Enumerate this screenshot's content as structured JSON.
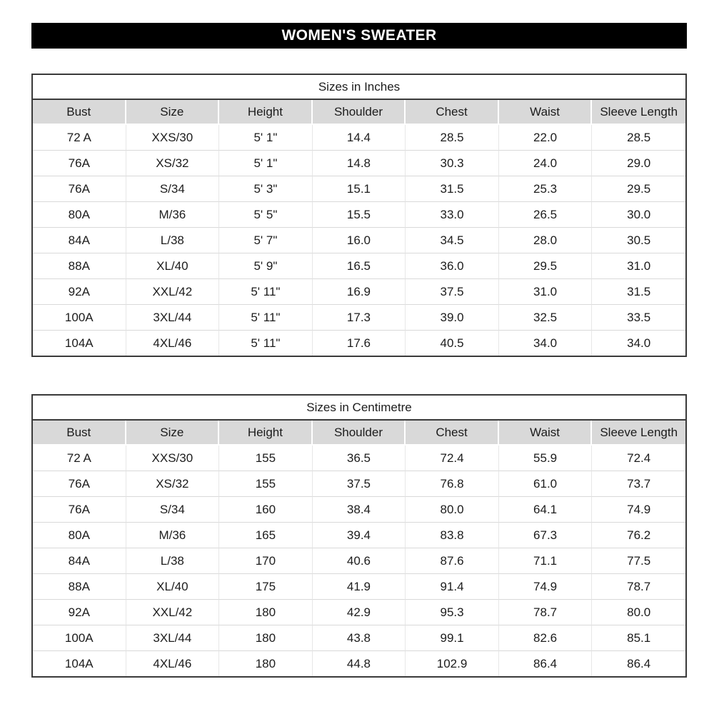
{
  "page_title": "WOMEN'S SWEATER",
  "colors": {
    "banner_bg": "#000000",
    "banner_text": "#ffffff",
    "header_row_bg": "#d9d9d9",
    "grid_line": "#d9d9d9",
    "table_border": "#3a3a3a"
  },
  "tables": [
    {
      "title": "Sizes in Inches",
      "columns": [
        "Bust",
        "Size",
        "Height",
        "Shoulder",
        "Chest",
        "Waist",
        "Sleeve Length"
      ],
      "rows": [
        [
          "72 A",
          "XXS/30",
          "5' 1\"",
          "14.4",
          "28.5",
          "22.0",
          "28.5"
        ],
        [
          "76A",
          "XS/32",
          "5' 1\"",
          "14.8",
          "30.3",
          "24.0",
          "29.0"
        ],
        [
          "76A",
          "S/34",
          "5' 3\"",
          "15.1",
          "31.5",
          "25.3",
          "29.5"
        ],
        [
          "80A",
          "M/36",
          "5' 5\"",
          "15.5",
          "33.0",
          "26.5",
          "30.0"
        ],
        [
          "84A",
          "L/38",
          "5' 7\"",
          "16.0",
          "34.5",
          "28.0",
          "30.5"
        ],
        [
          "88A",
          "XL/40",
          "5' 9\"",
          "16.5",
          "36.0",
          "29.5",
          "31.0"
        ],
        [
          "92A",
          "XXL/42",
          "5' 11\"",
          "16.9",
          "37.5",
          "31.0",
          "31.5"
        ],
        [
          "100A",
          "3XL/44",
          "5' 11\"",
          "17.3",
          "39.0",
          "32.5",
          "33.5"
        ],
        [
          "104A",
          "4XL/46",
          "5' 11\"",
          "17.6",
          "40.5",
          "34.0",
          "34.0"
        ]
      ]
    },
    {
      "title": "Sizes in Centimetre",
      "columns": [
        "Bust",
        "Size",
        "Height",
        "Shoulder",
        "Chest",
        "Waist",
        "Sleeve Length"
      ],
      "rows": [
        [
          "72 A",
          "XXS/30",
          "155",
          "36.5",
          "72.4",
          "55.9",
          "72.4"
        ],
        [
          "76A",
          "XS/32",
          "155",
          "37.5",
          "76.8",
          "61.0",
          "73.7"
        ],
        [
          "76A",
          "S/34",
          "160",
          "38.4",
          "80.0",
          "64.1",
          "74.9"
        ],
        [
          "80A",
          "M/36",
          "165",
          "39.4",
          "83.8",
          "67.3",
          "76.2"
        ],
        [
          "84A",
          "L/38",
          "170",
          "40.6",
          "87.6",
          "71.1",
          "77.5"
        ],
        [
          "88A",
          "XL/40",
          "175",
          "41.9",
          "91.4",
          "74.9",
          "78.7"
        ],
        [
          "92A",
          "XXL/42",
          "180",
          "42.9",
          "95.3",
          "78.7",
          "80.0"
        ],
        [
          "100A",
          "3XL/44",
          "180",
          "43.8",
          "99.1",
          "82.6",
          "85.1"
        ],
        [
          "104A",
          "4XL/46",
          "180",
          "44.8",
          "102.9",
          "86.4",
          "86.4"
        ]
      ]
    }
  ]
}
